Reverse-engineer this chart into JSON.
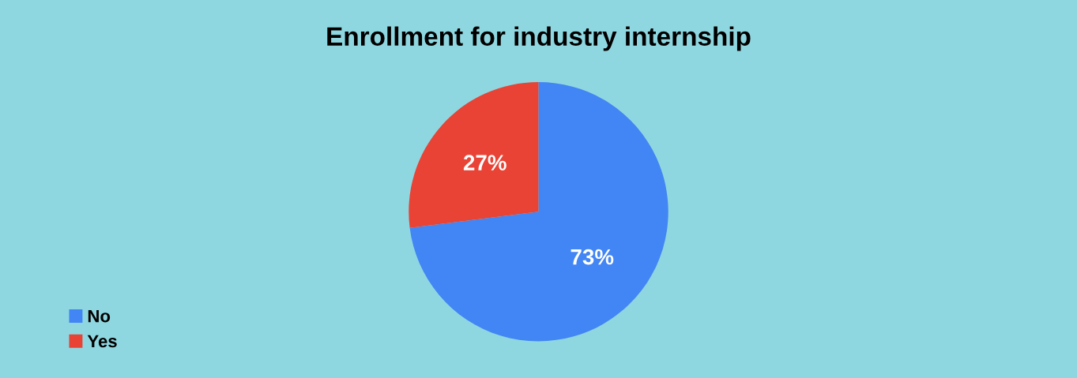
{
  "chart_data": {
    "type": "pie",
    "title": "Enrollment for industry internship",
    "categories": [
      "No",
      "Yes"
    ],
    "values": [
      73,
      27
    ],
    "colors": [
      "#4285f4",
      "#e84335"
    ],
    "value_labels": [
      "73%",
      "27%"
    ],
    "legend": "bottom left"
  }
}
